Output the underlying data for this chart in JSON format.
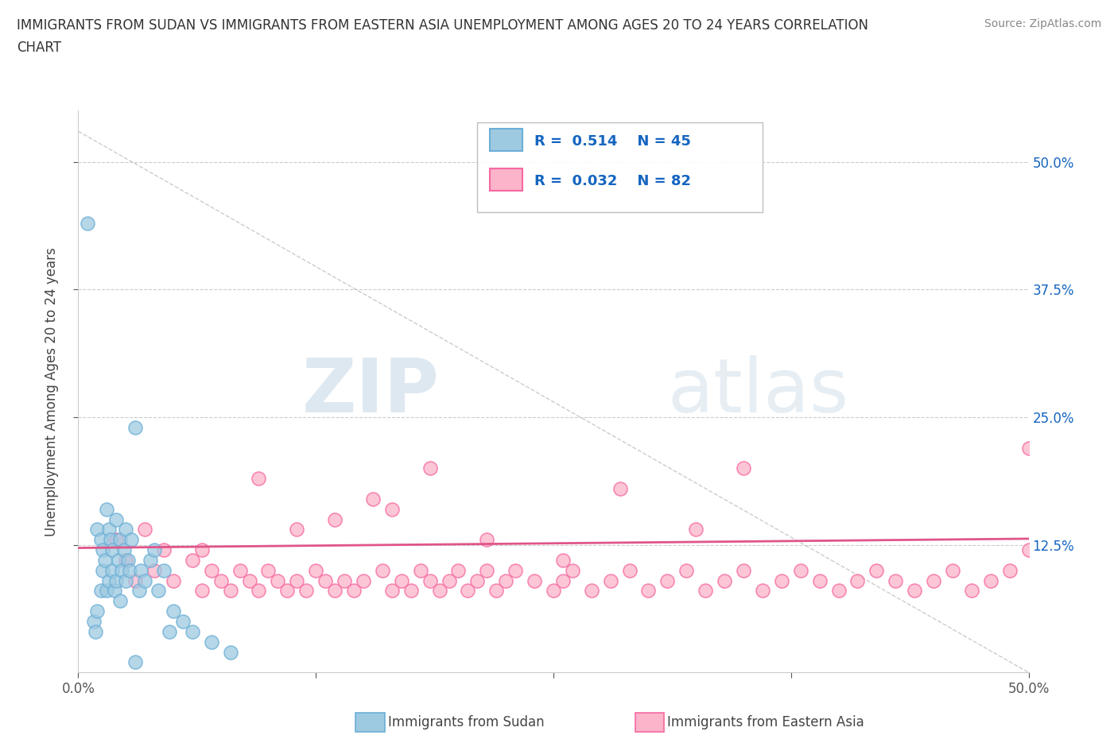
{
  "title": "IMMIGRANTS FROM SUDAN VS IMMIGRANTS FROM EASTERN ASIA UNEMPLOYMENT AMONG AGES 20 TO 24 YEARS CORRELATION\nCHART",
  "source_text": "Source: ZipAtlas.com",
  "ylabel": "Unemployment Among Ages 20 to 24 years",
  "xlim": [
    0.0,
    0.5
  ],
  "ylim": [
    0.0,
    0.55
  ],
  "sudan_color": "#6baed6",
  "sudan_color_fill": "#9ecae1",
  "eastern_asia_color": "#f768a1",
  "eastern_asia_color_fill": "#fbb4c9",
  "trend_sudan_color": "#1a6fba",
  "trend_ea_color": "#e0558a",
  "sudan_R": 0.514,
  "sudan_N": 45,
  "eastern_asia_R": 0.032,
  "eastern_asia_N": 82,
  "legend_label_1": "Immigrants from Sudan",
  "legend_label_2": "Immigrants from Eastern Asia",
  "watermark_zip": "ZIP",
  "watermark_atlas": "atlas",
  "sudan_x": [
    0.005,
    0.008,
    0.009,
    0.01,
    0.01,
    0.012,
    0.012,
    0.013,
    0.013,
    0.014,
    0.015,
    0.015,
    0.016,
    0.016,
    0.017,
    0.018,
    0.018,
    0.019,
    0.02,
    0.02,
    0.021,
    0.022,
    0.022,
    0.023,
    0.024,
    0.025,
    0.025,
    0.026,
    0.027,
    0.028,
    0.03,
    0.032,
    0.033,
    0.035,
    0.038,
    0.04,
    0.042,
    0.045,
    0.048,
    0.05,
    0.055,
    0.06,
    0.07,
    0.08,
    0.03
  ],
  "sudan_y": [
    0.44,
    0.05,
    0.04,
    0.14,
    0.06,
    0.13,
    0.08,
    0.12,
    0.1,
    0.11,
    0.08,
    0.16,
    0.09,
    0.14,
    0.13,
    0.1,
    0.12,
    0.08,
    0.15,
    0.09,
    0.11,
    0.07,
    0.13,
    0.1,
    0.12,
    0.09,
    0.14,
    0.11,
    0.1,
    0.13,
    0.24,
    0.08,
    0.1,
    0.09,
    0.11,
    0.12,
    0.08,
    0.1,
    0.04,
    0.06,
    0.05,
    0.04,
    0.03,
    0.02,
    0.01
  ],
  "eastern_asia_x": [
    0.02,
    0.025,
    0.03,
    0.035,
    0.04,
    0.045,
    0.05,
    0.06,
    0.065,
    0.07,
    0.075,
    0.08,
    0.085,
    0.09,
    0.095,
    0.1,
    0.105,
    0.11,
    0.115,
    0.12,
    0.125,
    0.13,
    0.135,
    0.14,
    0.145,
    0.15,
    0.16,
    0.165,
    0.17,
    0.175,
    0.18,
    0.185,
    0.19,
    0.195,
    0.2,
    0.205,
    0.21,
    0.215,
    0.22,
    0.225,
    0.23,
    0.24,
    0.25,
    0.255,
    0.26,
    0.27,
    0.28,
    0.29,
    0.3,
    0.31,
    0.32,
    0.33,
    0.34,
    0.35,
    0.36,
    0.37,
    0.38,
    0.39,
    0.4,
    0.41,
    0.42,
    0.43,
    0.44,
    0.45,
    0.46,
    0.47,
    0.48,
    0.49,
    0.5,
    0.155,
    0.095,
    0.185,
    0.215,
    0.165,
    0.325,
    0.255,
    0.285,
    0.135,
    0.065,
    0.115,
    0.35,
    0.5
  ],
  "eastern_asia_y": [
    0.13,
    0.11,
    0.09,
    0.14,
    0.1,
    0.12,
    0.09,
    0.11,
    0.08,
    0.1,
    0.09,
    0.08,
    0.1,
    0.09,
    0.08,
    0.1,
    0.09,
    0.08,
    0.09,
    0.08,
    0.1,
    0.09,
    0.08,
    0.09,
    0.08,
    0.09,
    0.1,
    0.08,
    0.09,
    0.08,
    0.1,
    0.09,
    0.08,
    0.09,
    0.1,
    0.08,
    0.09,
    0.1,
    0.08,
    0.09,
    0.1,
    0.09,
    0.08,
    0.09,
    0.1,
    0.08,
    0.09,
    0.1,
    0.08,
    0.09,
    0.1,
    0.08,
    0.09,
    0.1,
    0.08,
    0.09,
    0.1,
    0.09,
    0.08,
    0.09,
    0.1,
    0.09,
    0.08,
    0.09,
    0.1,
    0.08,
    0.09,
    0.1,
    0.12,
    0.17,
    0.19,
    0.2,
    0.13,
    0.16,
    0.14,
    0.11,
    0.18,
    0.15,
    0.12,
    0.14,
    0.2,
    0.22
  ]
}
